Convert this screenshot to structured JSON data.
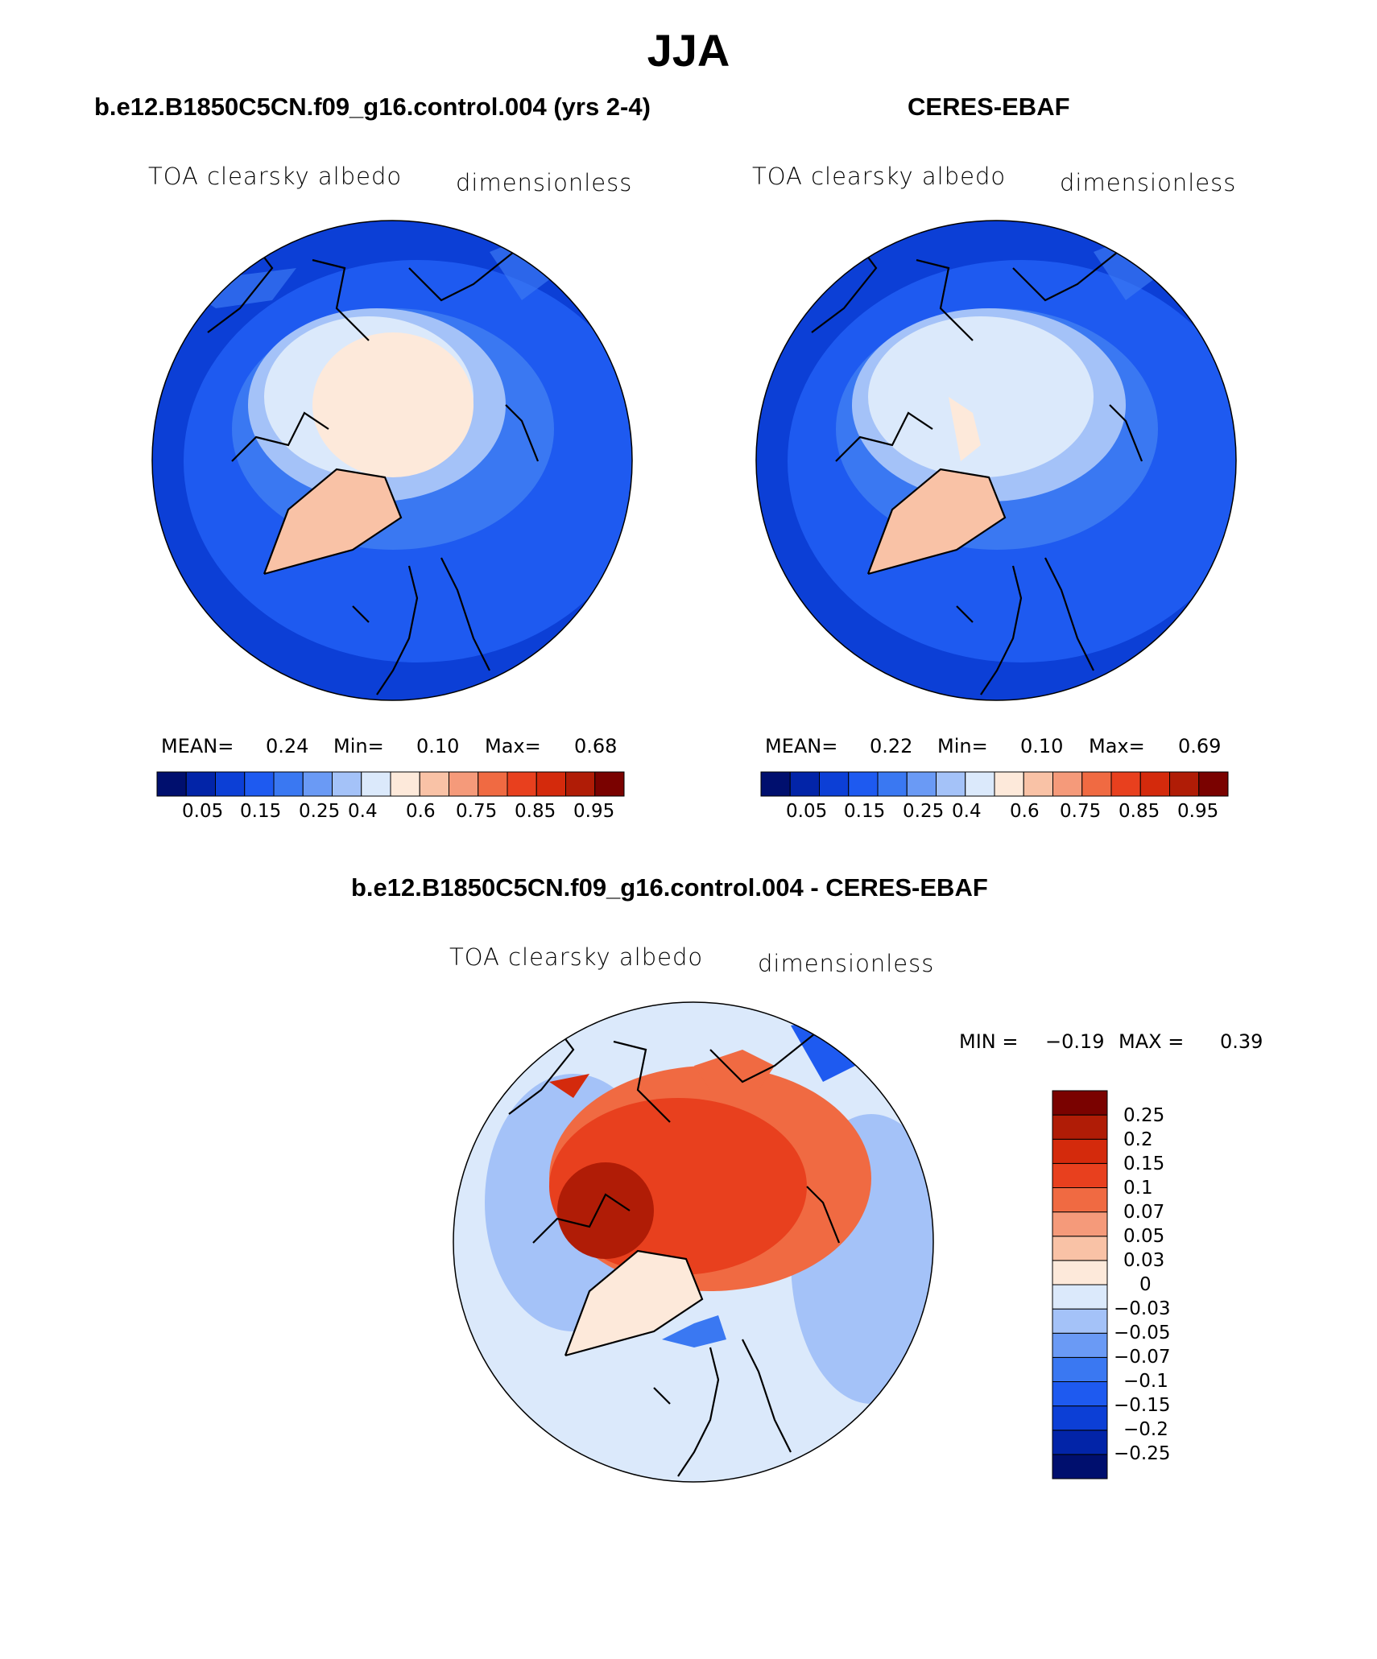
{
  "figure": {
    "title": "JJA",
    "variable_label": "TOA clearsky albedo",
    "units_label": "dimensionless"
  },
  "panels": [
    {
      "id": "model",
      "title": "b.e12.B1850C5CN.f09_g16.control.004 (yrs 2-4)",
      "stats": {
        "mean_label": "MEAN=",
        "mean": "0.24",
        "min_label": "Min=",
        "min": "0.10",
        "max_label": "Max=",
        "max": "0.68"
      }
    },
    {
      "id": "obs",
      "title": "CERES-EBAF",
      "stats": {
        "mean_label": "MEAN=",
        "mean": "0.22",
        "min_label": "Min=",
        "min": "0.10",
        "max_label": "Max=",
        "max": "0.69"
      }
    },
    {
      "id": "diff",
      "title": "b.e12.B1850C5CN.f09_g16.control.004 - CERES-EBAF",
      "stats": {
        "min_label": "MIN =",
        "min": "−0.19",
        "max_label": "MAX =",
        "max": "0.39"
      }
    }
  ],
  "colorbar_abs": {
    "colors": [
      "#000f6e",
      "#0224a8",
      "#0c3fd6",
      "#1e5af0",
      "#3a78f2",
      "#6a9af5",
      "#a4c2f8",
      "#dbe9fb",
      "#fde9da",
      "#f9c2a6",
      "#f59a7a",
      "#f06a42",
      "#e8401e",
      "#d42a0c",
      "#b01c06",
      "#7a0200"
    ],
    "tick_labels": [
      "0.05",
      "0.15",
      "0.25",
      "0.4",
      "0.6",
      "0.75",
      "0.85",
      "0.95"
    ]
  },
  "colorbar_diff": {
    "colors": [
      "#000f6e",
      "#0224a8",
      "#0c3fd6",
      "#1e5af0",
      "#3a78f2",
      "#6a9af5",
      "#a4c2f8",
      "#dbe9fb",
      "#fde9da",
      "#f9c2a6",
      "#f59a7a",
      "#f06a42",
      "#e8401e",
      "#d42a0c",
      "#b01c06",
      "#7a0200"
    ],
    "tick_labels": [
      "0.25",
      "0.2",
      "0.15",
      "0.1",
      "0.07",
      "0.05",
      "0.03",
      "0",
      "−0.03",
      "−0.05",
      "−0.07",
      "−0.1",
      "−0.15",
      "−0.2",
      "−0.25"
    ]
  }
}
